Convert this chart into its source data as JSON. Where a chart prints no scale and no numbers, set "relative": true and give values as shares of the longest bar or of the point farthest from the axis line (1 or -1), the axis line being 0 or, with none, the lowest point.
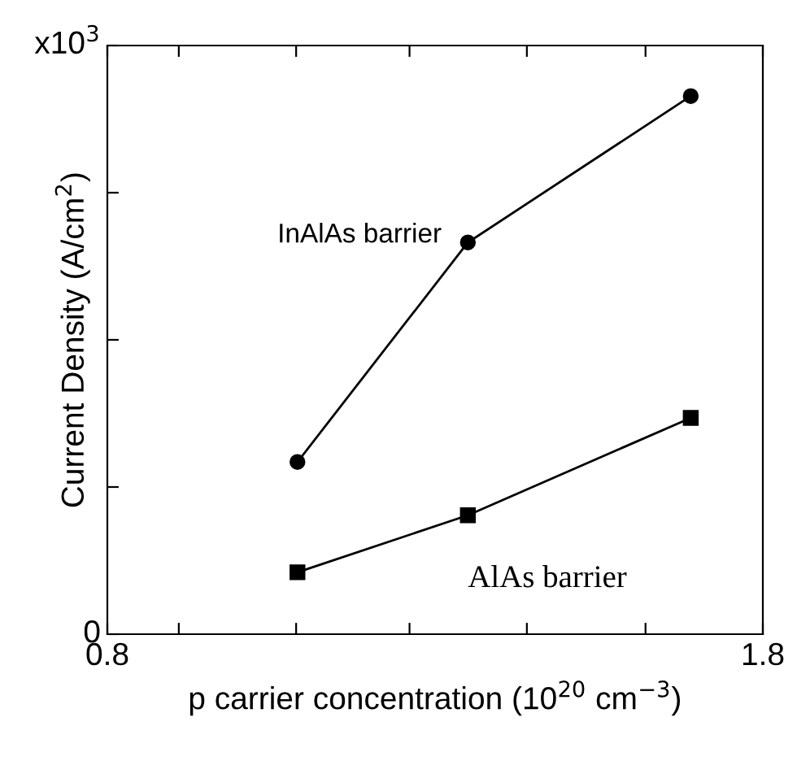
{
  "chart_data": {
    "type": "line",
    "relative": true,
    "xlabel": "p carrier concentration (10$^{20}$ cm$^{−3}$)",
    "ylabel": "Current Density (A/cm$^{2}$)",
    "x": [
      1.09,
      1.35,
      1.69
    ],
    "series": [
      {
        "name": "InAlAs barrier",
        "color": "#000000",
        "marker": "circle",
        "values": [
          0.32,
          0.728,
          1.0
        ]
      },
      {
        "name": "AlAs barrier",
        "color": "#000000",
        "marker": "square",
        "values": [
          0.115,
          0.221,
          0.402
        ]
      }
    ],
    "xlim": [
      0.8,
      1.8
    ],
    "xticks": [
      0.8,
      {
        "value": 0.909,
        "label": null
      },
      {
        "value": 1.088,
        "label": null
      },
      {
        "value": 1.261,
        "label": null
      },
      {
        "value": 1.44,
        "label": null
      },
      {
        "value": 1.621,
        "label": null
      },
      1.8
    ],
    "annotations": [
      "0",
      "x10$^{3}$"
    ],
    "grid": false,
    "legend": false,
    "line_style": "solid"
  }
}
